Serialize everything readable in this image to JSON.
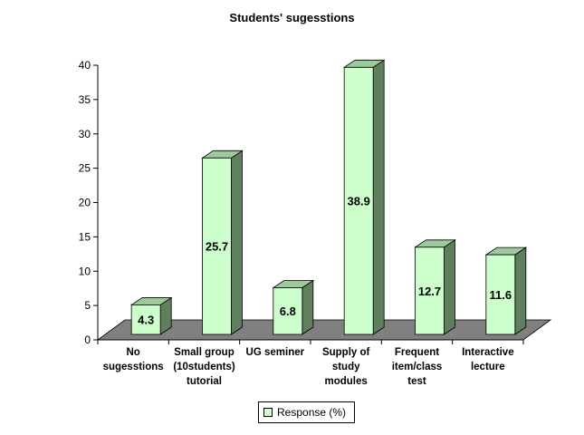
{
  "chart_data": {
    "type": "bar",
    "title": "Students' sugesstions",
    "categories": [
      "No\nsugesstions",
      "Small group\n(10students)\ntutorial",
      "UG seminer",
      "Supply of\nstudy\nmodules",
      "Frequent\nitem/class\ntest",
      "Interactive\nlecture"
    ],
    "series": [
      {
        "name": "Response (%)",
        "values": [
          4.3,
          25.7,
          6.8,
          38.9,
          12.7,
          11.6
        ]
      }
    ],
    "ylim": [
      0,
      40
    ],
    "yticks": [
      0,
      5,
      10,
      15,
      20,
      25,
      30,
      35,
      40
    ],
    "legend_position": "bottom",
    "grid": false,
    "three_d": true,
    "colors": {
      "bar_front": "#ccffcc",
      "bar_side": "#5f7f5f",
      "bar_top": "#9dc99d",
      "floor": "#808080"
    }
  }
}
